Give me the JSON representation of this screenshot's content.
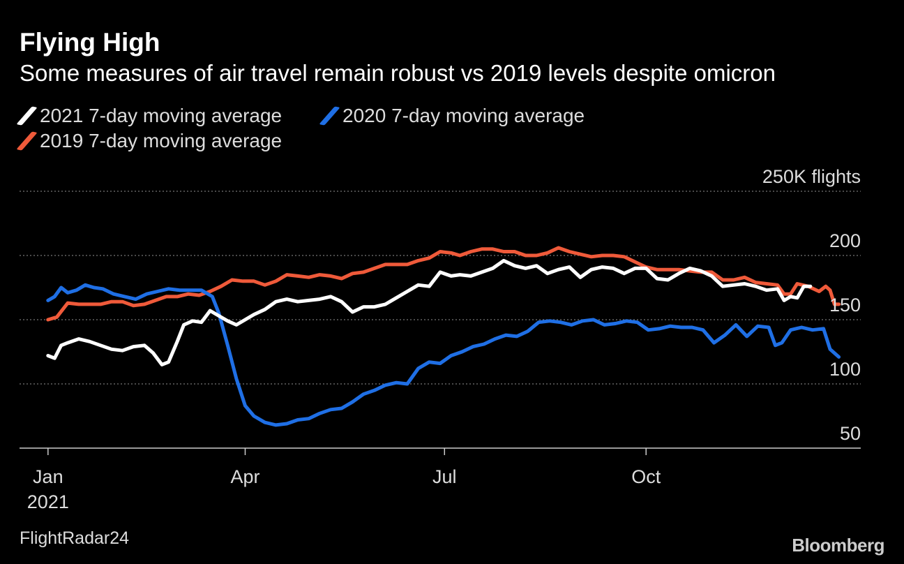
{
  "title": "Flying High",
  "subtitle": "Some measures of air travel remain robust vs 2019 levels despite omicron",
  "source": "FlightRadar24",
  "brand": "Bloomberg",
  "chart_data": {
    "type": "line",
    "unit_label": "250K flights",
    "x_ticks": [
      {
        "x": "2021-01-01",
        "label": "Jan",
        "sublabel": "2021"
      },
      {
        "x": "2021-04-01",
        "label": "Apr"
      },
      {
        "x": "2021-07-01",
        "label": "Jul"
      },
      {
        "x": "2021-10-01",
        "label": "Oct"
      }
    ],
    "y_ticks": [
      {
        "value": 250,
        "label": "250K flights"
      },
      {
        "value": 200,
        "label": "200"
      },
      {
        "value": 150,
        "label": "150"
      },
      {
        "value": 100,
        "label": "100"
      },
      {
        "value": 50,
        "label": "50"
      }
    ],
    "ylim": [
      50,
      250
    ],
    "xlim": [
      "2020-12-19",
      "2022-01-07"
    ],
    "grid": true,
    "legend_position": "top-left",
    "series": [
      {
        "name": "2021 7-day moving average",
        "color": "#ffffff",
        "points": [
          [
            "2021-01-01",
            122
          ],
          [
            "2021-01-04",
            120
          ],
          [
            "2021-01-07",
            130
          ],
          [
            "2021-01-10",
            132
          ],
          [
            "2021-01-15",
            135
          ],
          [
            "2021-01-20",
            133
          ],
          [
            "2021-01-25",
            130
          ],
          [
            "2021-01-30",
            127
          ],
          [
            "2021-02-04",
            126
          ],
          [
            "2021-02-09",
            129
          ],
          [
            "2021-02-14",
            130
          ],
          [
            "2021-02-18",
            124
          ],
          [
            "2021-02-22",
            115
          ],
          [
            "2021-02-25",
            117
          ],
          [
            "2021-03-01",
            133
          ],
          [
            "2021-03-04",
            146
          ],
          [
            "2021-03-08",
            149
          ],
          [
            "2021-03-12",
            148
          ],
          [
            "2021-03-16",
            157
          ],
          [
            "2021-03-20",
            153
          ],
          [
            "2021-03-24",
            149
          ],
          [
            "2021-03-28",
            146
          ],
          [
            "2021-04-01",
            150
          ],
          [
            "2021-04-05",
            154
          ],
          [
            "2021-04-10",
            158
          ],
          [
            "2021-04-15",
            164
          ],
          [
            "2021-04-20",
            166
          ],
          [
            "2021-04-25",
            164
          ],
          [
            "2021-04-30",
            165
          ],
          [
            "2021-05-05",
            166
          ],
          [
            "2021-05-10",
            168
          ],
          [
            "2021-05-15",
            164
          ],
          [
            "2021-05-20",
            156
          ],
          [
            "2021-05-25",
            160
          ],
          [
            "2021-05-30",
            160
          ],
          [
            "2021-06-04",
            162
          ],
          [
            "2021-06-09",
            167
          ],
          [
            "2021-06-14",
            172
          ],
          [
            "2021-06-19",
            177
          ],
          [
            "2021-06-24",
            176
          ],
          [
            "2021-06-29",
            187
          ],
          [
            "2021-07-04",
            184
          ],
          [
            "2021-07-08",
            185
          ],
          [
            "2021-07-13",
            184
          ],
          [
            "2021-07-18",
            187
          ],
          [
            "2021-07-23",
            190
          ],
          [
            "2021-07-28",
            196
          ],
          [
            "2021-08-02",
            192
          ],
          [
            "2021-08-07",
            190
          ],
          [
            "2021-08-12",
            192
          ],
          [
            "2021-08-17",
            186
          ],
          [
            "2021-08-22",
            189
          ],
          [
            "2021-08-27",
            191
          ],
          [
            "2021-09-01",
            183
          ],
          [
            "2021-09-06",
            189
          ],
          [
            "2021-09-11",
            191
          ],
          [
            "2021-09-16",
            190
          ],
          [
            "2021-09-21",
            186
          ],
          [
            "2021-09-26",
            190
          ],
          [
            "2021-10-01",
            190
          ],
          [
            "2021-10-06",
            182
          ],
          [
            "2021-10-11",
            181
          ],
          [
            "2021-10-16",
            186
          ],
          [
            "2021-10-21",
            190
          ],
          [
            "2021-10-26",
            188
          ],
          [
            "2021-10-31",
            184
          ],
          [
            "2021-11-05",
            176
          ],
          [
            "2021-11-10",
            177
          ],
          [
            "2021-11-15",
            178
          ],
          [
            "2021-11-20",
            176
          ],
          [
            "2021-11-25",
            173
          ],
          [
            "2021-11-30",
            174
          ],
          [
            "2021-12-03",
            165
          ],
          [
            "2021-12-06",
            168
          ],
          [
            "2021-12-09",
            167
          ],
          [
            "2021-12-12",
            176
          ],
          [
            "2021-12-15",
            176
          ]
        ]
      },
      {
        "name": "2020 7-day moving average",
        "color": "#1f6fe5",
        "points": [
          [
            "2021-01-01",
            165
          ],
          [
            "2021-01-04",
            168
          ],
          [
            "2021-01-07",
            175
          ],
          [
            "2021-01-10",
            171
          ],
          [
            "2021-01-14",
            173
          ],
          [
            "2021-01-18",
            177
          ],
          [
            "2021-01-22",
            175
          ],
          [
            "2021-01-26",
            174
          ],
          [
            "2021-01-31",
            170
          ],
          [
            "2021-02-05",
            168
          ],
          [
            "2021-02-10",
            166
          ],
          [
            "2021-02-15",
            170
          ],
          [
            "2021-02-20",
            172
          ],
          [
            "2021-02-25",
            174
          ],
          [
            "2021-03-02",
            173
          ],
          [
            "2021-03-07",
            173
          ],
          [
            "2021-03-12",
            173
          ],
          [
            "2021-03-17",
            168
          ],
          [
            "2021-03-20",
            155
          ],
          [
            "2021-03-24",
            130
          ],
          [
            "2021-03-28",
            104
          ],
          [
            "2021-04-01",
            83
          ],
          [
            "2021-04-05",
            75
          ],
          [
            "2021-04-10",
            70
          ],
          [
            "2021-04-15",
            68
          ],
          [
            "2021-04-20",
            69
          ],
          [
            "2021-04-25",
            72
          ],
          [
            "2021-04-30",
            73
          ],
          [
            "2021-05-05",
            77
          ],
          [
            "2021-05-10",
            80
          ],
          [
            "2021-05-15",
            81
          ],
          [
            "2021-05-20",
            86
          ],
          [
            "2021-05-25",
            92
          ],
          [
            "2021-05-30",
            95
          ],
          [
            "2021-06-04",
            99
          ],
          [
            "2021-06-09",
            101
          ],
          [
            "2021-06-14",
            100
          ],
          [
            "2021-06-19",
            112
          ],
          [
            "2021-06-24",
            117
          ],
          [
            "2021-06-29",
            116
          ],
          [
            "2021-07-04",
            122
          ],
          [
            "2021-07-09",
            125
          ],
          [
            "2021-07-14",
            129
          ],
          [
            "2021-07-19",
            131
          ],
          [
            "2021-07-24",
            135
          ],
          [
            "2021-07-29",
            138
          ],
          [
            "2021-08-03",
            137
          ],
          [
            "2021-08-08",
            141
          ],
          [
            "2021-08-13",
            148
          ],
          [
            "2021-08-18",
            149
          ],
          [
            "2021-08-23",
            148
          ],
          [
            "2021-08-28",
            146
          ],
          [
            "2021-09-02",
            149
          ],
          [
            "2021-09-07",
            150
          ],
          [
            "2021-09-12",
            146
          ],
          [
            "2021-09-17",
            147
          ],
          [
            "2021-09-22",
            149
          ],
          [
            "2021-09-27",
            148
          ],
          [
            "2021-10-02",
            142
          ],
          [
            "2021-10-07",
            143
          ],
          [
            "2021-10-12",
            145
          ],
          [
            "2021-10-17",
            144
          ],
          [
            "2021-10-22",
            144
          ],
          [
            "2021-10-27",
            142
          ],
          [
            "2021-11-01",
            132
          ],
          [
            "2021-11-06",
            138
          ],
          [
            "2021-11-11",
            146
          ],
          [
            "2021-11-16",
            137
          ],
          [
            "2021-11-21",
            145
          ],
          [
            "2021-11-26",
            144
          ],
          [
            "2021-11-29",
            130
          ],
          [
            "2021-12-02",
            132
          ],
          [
            "2021-12-06",
            142
          ],
          [
            "2021-12-11",
            144
          ],
          [
            "2021-12-16",
            142
          ],
          [
            "2021-12-21",
            143
          ],
          [
            "2021-12-24",
            127
          ],
          [
            "2021-12-28",
            121
          ]
        ]
      },
      {
        "name": "2019 7-day moving average",
        "color": "#ef5a3a",
        "points": [
          [
            "2021-01-01",
            150
          ],
          [
            "2021-01-05",
            152
          ],
          [
            "2021-01-10",
            163
          ],
          [
            "2021-01-15",
            162
          ],
          [
            "2021-01-20",
            162
          ],
          [
            "2021-01-25",
            162
          ],
          [
            "2021-01-30",
            164
          ],
          [
            "2021-02-04",
            164
          ],
          [
            "2021-02-09",
            161
          ],
          [
            "2021-02-14",
            162
          ],
          [
            "2021-02-19",
            165
          ],
          [
            "2021-02-24",
            168
          ],
          [
            "2021-03-01",
            168
          ],
          [
            "2021-03-06",
            170
          ],
          [
            "2021-03-11",
            169
          ],
          [
            "2021-03-16",
            172
          ],
          [
            "2021-03-21",
            176
          ],
          [
            "2021-03-26",
            181
          ],
          [
            "2021-03-31",
            180
          ],
          [
            "2021-04-05",
            180
          ],
          [
            "2021-04-10",
            177
          ],
          [
            "2021-04-15",
            180
          ],
          [
            "2021-04-20",
            185
          ],
          [
            "2021-04-25",
            184
          ],
          [
            "2021-04-30",
            183
          ],
          [
            "2021-05-05",
            185
          ],
          [
            "2021-05-10",
            184
          ],
          [
            "2021-05-15",
            182
          ],
          [
            "2021-05-20",
            186
          ],
          [
            "2021-05-25",
            187
          ],
          [
            "2021-05-30",
            190
          ],
          [
            "2021-06-04",
            193
          ],
          [
            "2021-06-09",
            193
          ],
          [
            "2021-06-14",
            193
          ],
          [
            "2021-06-19",
            196
          ],
          [
            "2021-06-24",
            198
          ],
          [
            "2021-06-29",
            203
          ],
          [
            "2021-07-04",
            202
          ],
          [
            "2021-07-08",
            200
          ],
          [
            "2021-07-13",
            203
          ],
          [
            "2021-07-18",
            205
          ],
          [
            "2021-07-23",
            205
          ],
          [
            "2021-07-28",
            203
          ],
          [
            "2021-08-02",
            203
          ],
          [
            "2021-08-07",
            200
          ],
          [
            "2021-08-12",
            200
          ],
          [
            "2021-08-17",
            202
          ],
          [
            "2021-08-22",
            206
          ],
          [
            "2021-08-27",
            203
          ],
          [
            "2021-09-01",
            201
          ],
          [
            "2021-09-06",
            199
          ],
          [
            "2021-09-11",
            200
          ],
          [
            "2021-09-16",
            200
          ],
          [
            "2021-09-21",
            199
          ],
          [
            "2021-09-26",
            195
          ],
          [
            "2021-10-01",
            191
          ],
          [
            "2021-10-06",
            189
          ],
          [
            "2021-10-11",
            189
          ],
          [
            "2021-10-16",
            189
          ],
          [
            "2021-10-21",
            188
          ],
          [
            "2021-10-26",
            187
          ],
          [
            "2021-10-31",
            187
          ],
          [
            "2021-11-05",
            181
          ],
          [
            "2021-11-10",
            181
          ],
          [
            "2021-11-15",
            183
          ],
          [
            "2021-11-20",
            179
          ],
          [
            "2021-11-25",
            178
          ],
          [
            "2021-11-30",
            177
          ],
          [
            "2021-12-03",
            170
          ],
          [
            "2021-12-06",
            170
          ],
          [
            "2021-12-09",
            178
          ],
          [
            "2021-12-14",
            176
          ],
          [
            "2021-12-19",
            172
          ],
          [
            "2021-12-22",
            176
          ],
          [
            "2021-12-24",
            173
          ],
          [
            "2021-12-26",
            162
          ],
          [
            "2021-12-28",
            162
          ]
        ]
      }
    ]
  }
}
